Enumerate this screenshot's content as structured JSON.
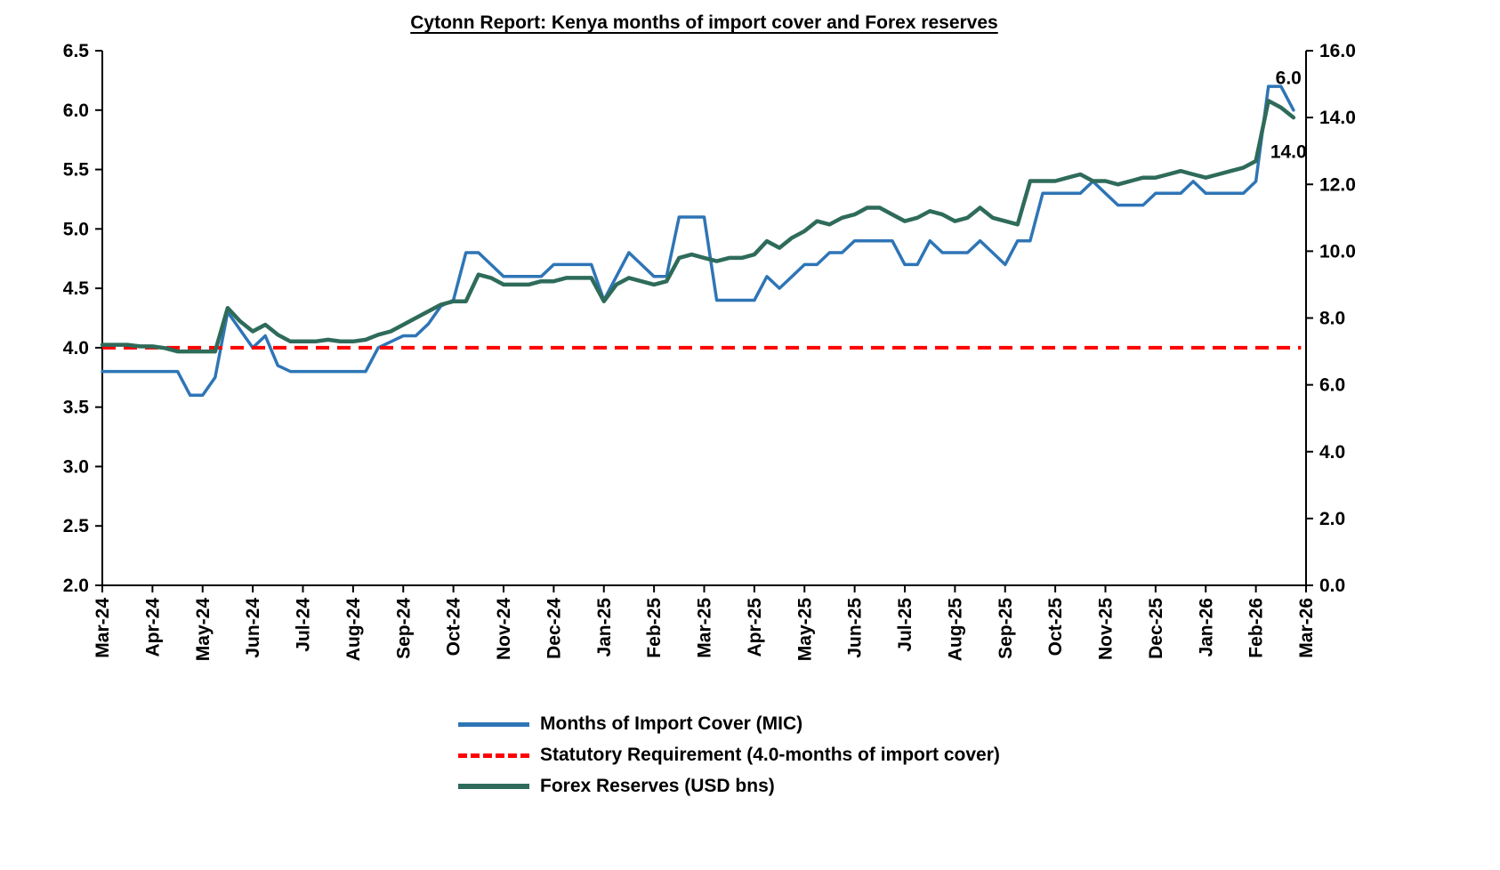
{
  "title": "Cytonn Report: Kenya months of import cover and Forex reserves",
  "chart_data": {
    "type": "line",
    "title": "Cytonn Report: Kenya months of import cover and Forex reserves",
    "grid": false,
    "background": "#ffffff",
    "x_tick_labels": [
      "Mar-24",
      "Apr-24",
      "May-24",
      "Jun-24",
      "Jul-24",
      "Aug-24",
      "Sep-24",
      "Oct-24",
      "Nov-24",
      "Dec-24",
      "Jan-25",
      "Feb-25",
      "Mar-25",
      "Apr-25",
      "May-25",
      "Jun-25",
      "Jul-25",
      "Aug-25",
      "Sep-25",
      "Oct-25",
      "Nov-25",
      "Dec-25",
      "Jan-26",
      "Feb-26",
      "Mar-26"
    ],
    "left_axis": {
      "min": 2.0,
      "max": 6.5,
      "step": 0.5,
      "tick_labels": [
        "6.5",
        "6.0",
        "5.5",
        "5.0",
        "4.5",
        "4.0",
        "3.5",
        "3.0",
        "2.5",
        "2.0"
      ]
    },
    "right_axis": {
      "min": 0.0,
      "max": 16.0,
      "step": 2.0,
      "tick_labels": [
        "16.0",
        "14.0",
        "12.0",
        "10.0",
        "8.0",
        "6.0",
        "4.0",
        "2.0",
        "0.0"
      ]
    },
    "points_per_month": 4,
    "series": [
      {
        "name": "Months of Import Cover (MIC)",
        "axis": "left",
        "color": "#2E75B6",
        "style": "solid",
        "values": [
          3.8,
          3.8,
          3.8,
          3.8,
          3.8,
          3.8,
          3.8,
          3.6,
          3.6,
          3.75,
          4.3,
          4.15,
          4.0,
          4.1,
          3.85,
          3.8,
          3.8,
          3.8,
          3.8,
          3.8,
          3.8,
          3.8,
          4.0,
          4.05,
          4.1,
          4.1,
          4.2,
          4.35,
          4.4,
          4.8,
          4.8,
          4.7,
          4.6,
          4.6,
          4.6,
          4.6,
          4.7,
          4.7,
          4.7,
          4.7,
          4.4,
          4.6,
          4.8,
          4.7,
          4.6,
          4.6,
          5.1,
          5.1,
          5.1,
          4.4,
          4.4,
          4.4,
          4.4,
          4.6,
          4.5,
          4.6,
          4.7,
          4.7,
          4.8,
          4.8,
          4.9,
          4.9,
          4.9,
          4.9,
          4.7,
          4.7,
          4.9,
          4.8,
          4.8,
          4.8,
          4.9,
          4.8,
          4.7,
          4.9,
          4.9,
          5.3,
          5.3,
          5.3,
          5.3,
          5.4,
          5.3,
          5.2,
          5.2,
          5.2,
          5.3,
          5.3,
          5.3,
          5.4,
          5.3,
          5.3,
          5.3,
          5.3,
          5.4,
          6.2,
          6.2,
          6.0
        ]
      },
      {
        "name": "Statutory Requirement (4.0-months of import cover)",
        "axis": "left",
        "color": "#FF0000",
        "style": "dashed",
        "constant": 4.0,
        "month_start": 0,
        "month_end": 23.9
      },
      {
        "name": "Forex Reserves (USD bns)",
        "axis": "right",
        "color": "#2E6B5A",
        "style": "solid",
        "values": [
          7.2,
          7.2,
          7.2,
          7.15,
          7.15,
          7.1,
          7.0,
          7.0,
          7.0,
          7.0,
          8.3,
          7.9,
          7.6,
          7.8,
          7.5,
          7.3,
          7.3,
          7.3,
          7.35,
          7.3,
          7.3,
          7.35,
          7.5,
          7.6,
          7.8,
          8.0,
          8.2,
          8.4,
          8.5,
          8.5,
          9.3,
          9.2,
          9.0,
          9.0,
          9.0,
          9.1,
          9.1,
          9.2,
          9.2,
          9.2,
          8.5,
          9.0,
          9.2,
          9.1,
          9.0,
          9.1,
          9.8,
          9.9,
          9.8,
          9.7,
          9.8,
          9.8,
          9.9,
          10.3,
          10.1,
          10.4,
          10.6,
          10.9,
          10.8,
          11.0,
          11.1,
          11.3,
          11.3,
          11.1,
          10.9,
          11.0,
          11.2,
          11.1,
          10.9,
          11.0,
          11.3,
          11.0,
          10.9,
          10.8,
          12.1,
          12.1,
          12.1,
          12.2,
          12.3,
          12.1,
          12.1,
          12.0,
          12.1,
          12.2,
          12.2,
          12.3,
          12.4,
          12.3,
          12.2,
          12.3,
          12.4,
          12.5,
          12.7,
          14.5,
          14.3,
          14.0
        ]
      }
    ],
    "annotations": [
      {
        "text": "6.0",
        "month": 23.65,
        "left_value": 6.27
      },
      {
        "text": "14.0",
        "month": 23.65,
        "left_value": 5.65
      }
    ],
    "legend": {
      "position": "bottom",
      "items": [
        "Months of Import Cover (MIC)",
        "Statutory Requirement (4.0-months of import cover)",
        "Forex Reserves (USD bns)"
      ]
    }
  }
}
